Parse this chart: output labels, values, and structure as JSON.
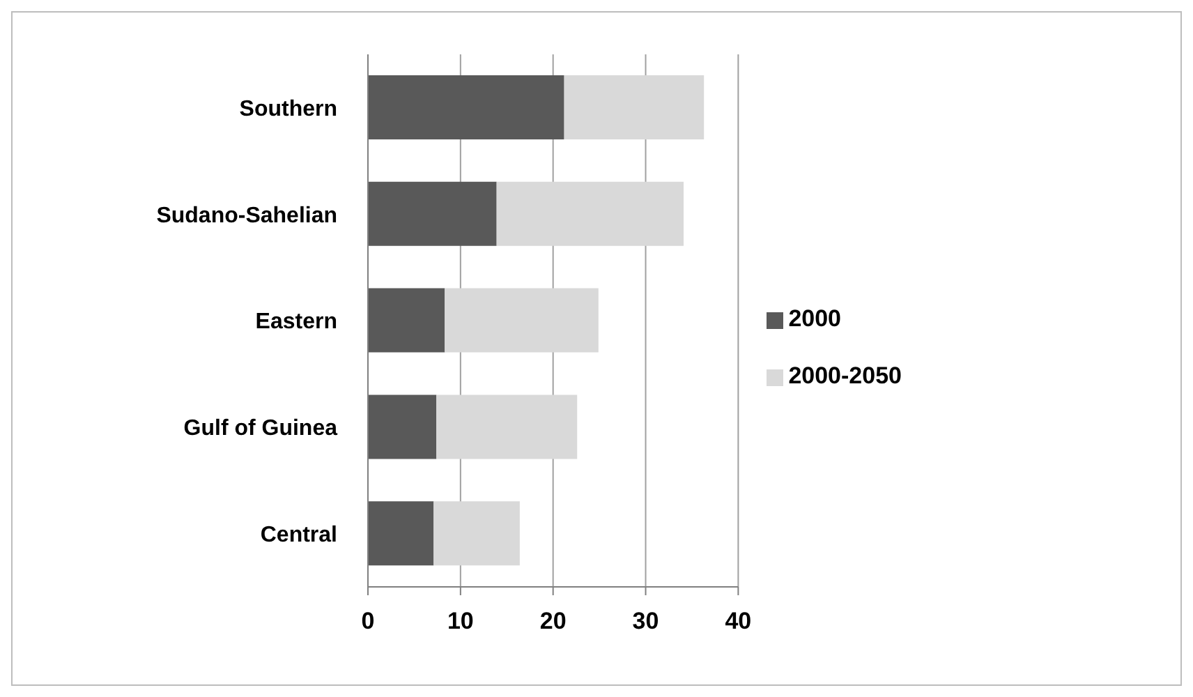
{
  "chart_data": {
    "type": "bar",
    "orientation": "horizontal",
    "stacked": true,
    "categories": [
      "Southern",
      "Sudano-Sahelian",
      "Eastern",
      "Gulf of Guinea",
      "Central"
    ],
    "series": [
      {
        "name": "2000",
        "color": "#595959",
        "values": [
          21.2,
          13.9,
          8.3,
          7.4,
          7.1
        ]
      },
      {
        "name": "2000-2050",
        "color": "#d9d9d9",
        "values": [
          15.1,
          20.2,
          16.6,
          15.2,
          9.3
        ]
      }
    ],
    "xlim": [
      0,
      40
    ],
    "xticks": [
      0,
      10,
      20,
      30,
      40
    ],
    "grid": "x",
    "legend": "right"
  }
}
